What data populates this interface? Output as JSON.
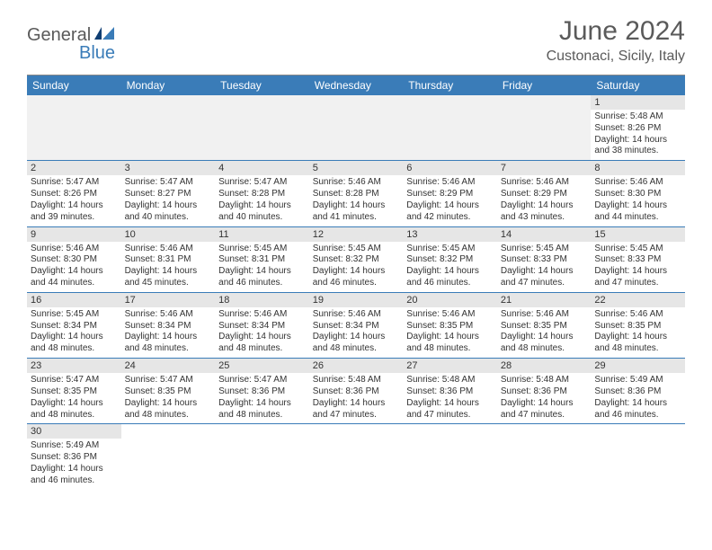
{
  "logo": {
    "general": "General",
    "blue": "Blue"
  },
  "title": {
    "monthYear": "June 2024",
    "location": "Custonaci, Sicily, Italy"
  },
  "colors": {
    "headerBg": "#3a7cb8",
    "headerText": "#ffffff",
    "dayStripe": "#e6e6e6",
    "rule": "#3a7cb8",
    "bodyText": "#333333",
    "logoGray": "#5a5a5a",
    "logoBlue": "#3a7cb8"
  },
  "dayHeaders": [
    "Sunday",
    "Monday",
    "Tuesday",
    "Wednesday",
    "Thursday",
    "Friday",
    "Saturday"
  ],
  "startBlank": 6,
  "days": [
    {
      "n": "1",
      "sr": "Sunrise: 5:48 AM",
      "ss": "Sunset: 8:26 PM",
      "dl1": "Daylight: 14 hours",
      "dl2": "and 38 minutes."
    },
    {
      "n": "2",
      "sr": "Sunrise: 5:47 AM",
      "ss": "Sunset: 8:26 PM",
      "dl1": "Daylight: 14 hours",
      "dl2": "and 39 minutes."
    },
    {
      "n": "3",
      "sr": "Sunrise: 5:47 AM",
      "ss": "Sunset: 8:27 PM",
      "dl1": "Daylight: 14 hours",
      "dl2": "and 40 minutes."
    },
    {
      "n": "4",
      "sr": "Sunrise: 5:47 AM",
      "ss": "Sunset: 8:28 PM",
      "dl1": "Daylight: 14 hours",
      "dl2": "and 40 minutes."
    },
    {
      "n": "5",
      "sr": "Sunrise: 5:46 AM",
      "ss": "Sunset: 8:28 PM",
      "dl1": "Daylight: 14 hours",
      "dl2": "and 41 minutes."
    },
    {
      "n": "6",
      "sr": "Sunrise: 5:46 AM",
      "ss": "Sunset: 8:29 PM",
      "dl1": "Daylight: 14 hours",
      "dl2": "and 42 minutes."
    },
    {
      "n": "7",
      "sr": "Sunrise: 5:46 AM",
      "ss": "Sunset: 8:29 PM",
      "dl1": "Daylight: 14 hours",
      "dl2": "and 43 minutes."
    },
    {
      "n": "8",
      "sr": "Sunrise: 5:46 AM",
      "ss": "Sunset: 8:30 PM",
      "dl1": "Daylight: 14 hours",
      "dl2": "and 44 minutes."
    },
    {
      "n": "9",
      "sr": "Sunrise: 5:46 AM",
      "ss": "Sunset: 8:30 PM",
      "dl1": "Daylight: 14 hours",
      "dl2": "and 44 minutes."
    },
    {
      "n": "10",
      "sr": "Sunrise: 5:46 AM",
      "ss": "Sunset: 8:31 PM",
      "dl1": "Daylight: 14 hours",
      "dl2": "and 45 minutes."
    },
    {
      "n": "11",
      "sr": "Sunrise: 5:45 AM",
      "ss": "Sunset: 8:31 PM",
      "dl1": "Daylight: 14 hours",
      "dl2": "and 46 minutes."
    },
    {
      "n": "12",
      "sr": "Sunrise: 5:45 AM",
      "ss": "Sunset: 8:32 PM",
      "dl1": "Daylight: 14 hours",
      "dl2": "and 46 minutes."
    },
    {
      "n": "13",
      "sr": "Sunrise: 5:45 AM",
      "ss": "Sunset: 8:32 PM",
      "dl1": "Daylight: 14 hours",
      "dl2": "and 46 minutes."
    },
    {
      "n": "14",
      "sr": "Sunrise: 5:45 AM",
      "ss": "Sunset: 8:33 PM",
      "dl1": "Daylight: 14 hours",
      "dl2": "and 47 minutes."
    },
    {
      "n": "15",
      "sr": "Sunrise: 5:45 AM",
      "ss": "Sunset: 8:33 PM",
      "dl1": "Daylight: 14 hours",
      "dl2": "and 47 minutes."
    },
    {
      "n": "16",
      "sr": "Sunrise: 5:45 AM",
      "ss": "Sunset: 8:34 PM",
      "dl1": "Daylight: 14 hours",
      "dl2": "and 48 minutes."
    },
    {
      "n": "17",
      "sr": "Sunrise: 5:46 AM",
      "ss": "Sunset: 8:34 PM",
      "dl1": "Daylight: 14 hours",
      "dl2": "and 48 minutes."
    },
    {
      "n": "18",
      "sr": "Sunrise: 5:46 AM",
      "ss": "Sunset: 8:34 PM",
      "dl1": "Daylight: 14 hours",
      "dl2": "and 48 minutes."
    },
    {
      "n": "19",
      "sr": "Sunrise: 5:46 AM",
      "ss": "Sunset: 8:34 PM",
      "dl1": "Daylight: 14 hours",
      "dl2": "and 48 minutes."
    },
    {
      "n": "20",
      "sr": "Sunrise: 5:46 AM",
      "ss": "Sunset: 8:35 PM",
      "dl1": "Daylight: 14 hours",
      "dl2": "and 48 minutes."
    },
    {
      "n": "21",
      "sr": "Sunrise: 5:46 AM",
      "ss": "Sunset: 8:35 PM",
      "dl1": "Daylight: 14 hours",
      "dl2": "and 48 minutes."
    },
    {
      "n": "22",
      "sr": "Sunrise: 5:46 AM",
      "ss": "Sunset: 8:35 PM",
      "dl1": "Daylight: 14 hours",
      "dl2": "and 48 minutes."
    },
    {
      "n": "23",
      "sr": "Sunrise: 5:47 AM",
      "ss": "Sunset: 8:35 PM",
      "dl1": "Daylight: 14 hours",
      "dl2": "and 48 minutes."
    },
    {
      "n": "24",
      "sr": "Sunrise: 5:47 AM",
      "ss": "Sunset: 8:35 PM",
      "dl1": "Daylight: 14 hours",
      "dl2": "and 48 minutes."
    },
    {
      "n": "25",
      "sr": "Sunrise: 5:47 AM",
      "ss": "Sunset: 8:36 PM",
      "dl1": "Daylight: 14 hours",
      "dl2": "and 48 minutes."
    },
    {
      "n": "26",
      "sr": "Sunrise: 5:48 AM",
      "ss": "Sunset: 8:36 PM",
      "dl1": "Daylight: 14 hours",
      "dl2": "and 47 minutes."
    },
    {
      "n": "27",
      "sr": "Sunrise: 5:48 AM",
      "ss": "Sunset: 8:36 PM",
      "dl1": "Daylight: 14 hours",
      "dl2": "and 47 minutes."
    },
    {
      "n": "28",
      "sr": "Sunrise: 5:48 AM",
      "ss": "Sunset: 8:36 PM",
      "dl1": "Daylight: 14 hours",
      "dl2": "and 47 minutes."
    },
    {
      "n": "29",
      "sr": "Sunrise: 5:49 AM",
      "ss": "Sunset: 8:36 PM",
      "dl1": "Daylight: 14 hours",
      "dl2": "and 46 minutes."
    },
    {
      "n": "30",
      "sr": "Sunrise: 5:49 AM",
      "ss": "Sunset: 8:36 PM",
      "dl1": "Daylight: 14 hours",
      "dl2": "and 46 minutes."
    }
  ]
}
